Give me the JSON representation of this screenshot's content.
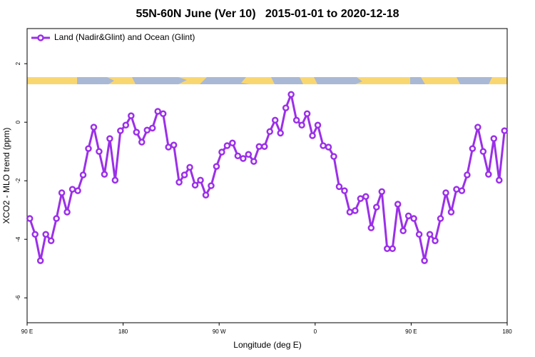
{
  "chart_data": {
    "type": "line",
    "title": "55N-60N June (Ver 10)   2015-01-01 to 2020-12-18",
    "xlabel": "Longitude (deg E)",
    "ylabel": "XCO2 - MLO trend (ppm)",
    "x": [
      92.5,
      97.5,
      102.5,
      107.5,
      112.5,
      117.5,
      122.5,
      127.5,
      132.5,
      137.5,
      142.5,
      147.5,
      152.5,
      157.5,
      162.5,
      167.5,
      172.5,
      177.5,
      182.5,
      187.5,
      192.5,
      197.5,
      202.5,
      207.5,
      212.5,
      217.5,
      222.5,
      227.5,
      232.5,
      237.5,
      242.5,
      247.5,
      252.5,
      257.5,
      262.5,
      267.5,
      272.5,
      277.5,
      282.5,
      287.5,
      292.5,
      297.5,
      302.5,
      307.5,
      312.5,
      317.5,
      322.5,
      327.5,
      332.5,
      337.5,
      342.5,
      347.5,
      352.5,
      357.5,
      362.5,
      367.5,
      372.5,
      377.5,
      382.5,
      387.5,
      392.5,
      397.5,
      402.5,
      407.5,
      412.5,
      417.5,
      422.5,
      427.5,
      432.5,
      437.5,
      442.5,
      447.5,
      452.5,
      457.5,
      462.5,
      467.5,
      472.5,
      477.5,
      482.5,
      487.5,
      492.5,
      497.5,
      502.5,
      507.5,
      512.5,
      517.5,
      522.5,
      527.5,
      532.5,
      537.5
    ],
    "series": [
      {
        "name": "Land (Nadir&Glint) and Ocean (Glint)",
        "color": "#9b30e8",
        "values": [
          -3.29,
          -3.83,
          -4.73,
          -3.83,
          -4.05,
          -3.29,
          -2.41,
          -3.07,
          -2.29,
          -2.34,
          -1.8,
          -0.9,
          -0.17,
          -1.0,
          -1.78,
          -0.56,
          -1.98,
          -0.29,
          -0.1,
          0.22,
          -0.34,
          -0.68,
          -0.27,
          -0.2,
          0.37,
          0.29,
          -0.85,
          -0.78,
          -2.05,
          -1.8,
          -1.54,
          -2.15,
          -1.98,
          -2.49,
          -2.17,
          -1.51,
          -1.02,
          -0.8,
          -0.71,
          -1.15,
          -1.24,
          -1.1,
          -1.34,
          -0.83,
          -0.83,
          -0.32,
          0.07,
          -0.37,
          0.49,
          0.95,
          0.07,
          -0.1,
          0.29,
          -0.46,
          -0.1,
          -0.8,
          -0.85,
          -1.17,
          -2.2,
          -2.34,
          -3.07,
          -3.02,
          -2.61,
          -2.54,
          -3.61,
          -2.9,
          -2.37,
          -4.32,
          -4.32,
          -2.8,
          -3.71,
          -3.2,
          -3.29,
          -3.83,
          -4.73,
          -3.83,
          -4.05,
          -3.29,
          -2.41,
          -3.07,
          -2.29,
          -2.34,
          -1.8,
          -0.9,
          -0.17,
          -1.0,
          -1.78,
          -0.56,
          -1.98,
          -0.29
        ]
      }
    ],
    "xlim": [
      90,
      540
    ],
    "xticks": [
      {
        "value": 90,
        "label": "90 E"
      },
      {
        "value": 180,
        "label": "180"
      },
      {
        "value": 270,
        "label": "90 W"
      },
      {
        "value": 360,
        "label": "0"
      },
      {
        "value": 450,
        "label": "90 E"
      },
      {
        "value": 540,
        "label": "180"
      }
    ],
    "ylim": [
      -6.85,
      3.2
    ],
    "yticks": [
      -6,
      -4,
      -2,
      0,
      2
    ],
    "legend": "upper left"
  }
}
